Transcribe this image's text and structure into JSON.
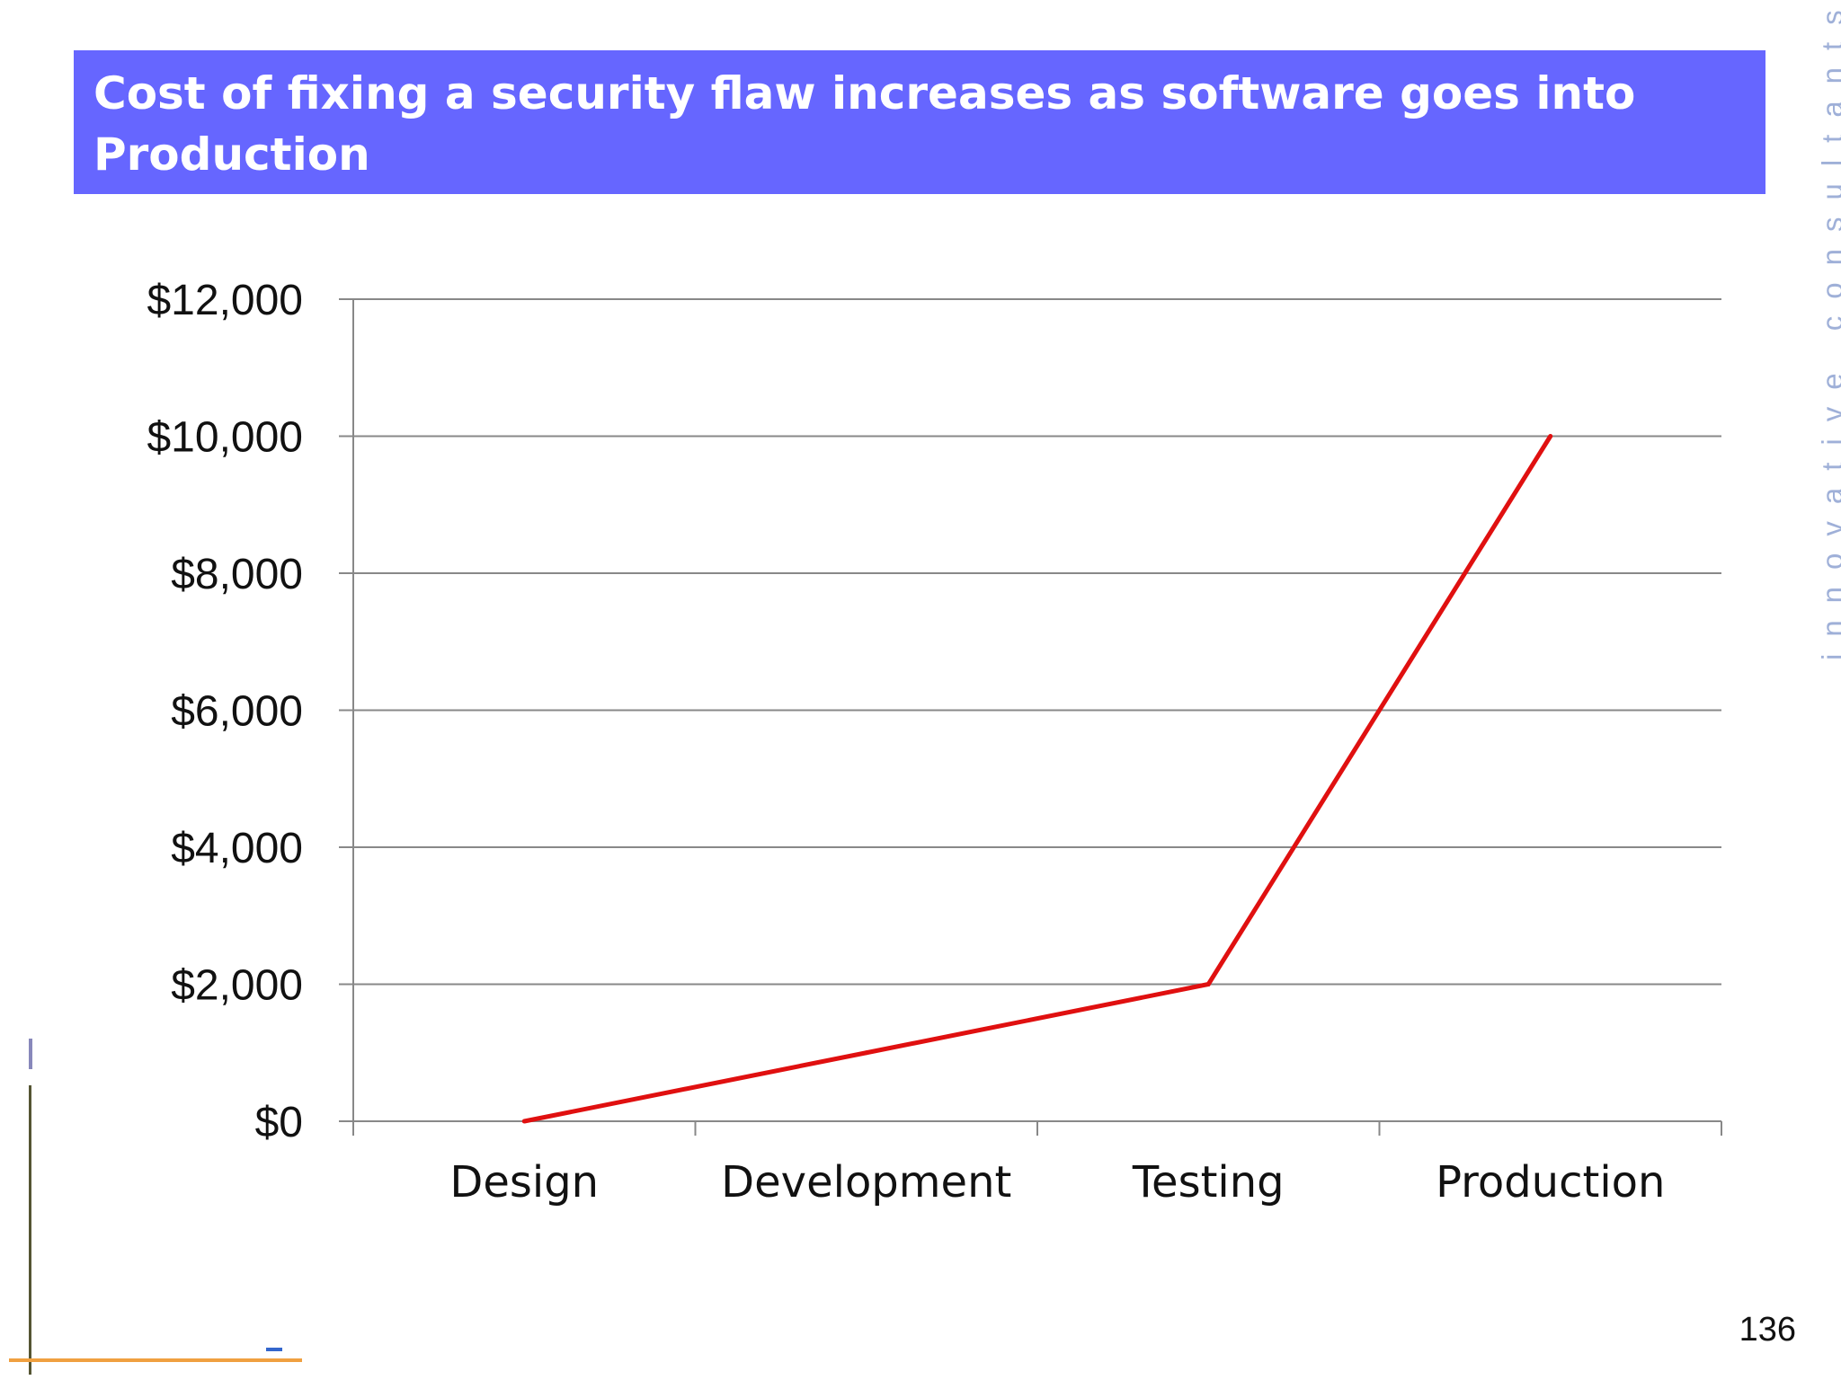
{
  "slide": {
    "title": "Cost of fixing a security flaw increases as software goes into Production",
    "side_text": "innovative consultants",
    "page_number": "136"
  },
  "colors": {
    "title_bar": "#6666ff",
    "title_text": "#ffffff",
    "series_line": "#e01010",
    "gridline": "#888888",
    "side_text": "#9fb0d8"
  },
  "chart_data": {
    "type": "line",
    "title": "",
    "xlabel": "",
    "ylabel": "",
    "categories": [
      "Design",
      "Development",
      "Testing",
      "Production"
    ],
    "y_tick_labels": [
      "$0",
      "$2,000",
      "$4,000",
      "$6,000",
      "$8,000",
      "$10,000",
      "$12,000"
    ],
    "y_ticks": [
      0,
      2000,
      4000,
      6000,
      8000,
      10000,
      12000
    ],
    "ylim": [
      0,
      12000
    ],
    "grid": true,
    "legend": "none",
    "series": [
      {
        "values": [
          0,
          1000,
          2000,
          10000
        ],
        "color": "#e01010"
      }
    ]
  }
}
